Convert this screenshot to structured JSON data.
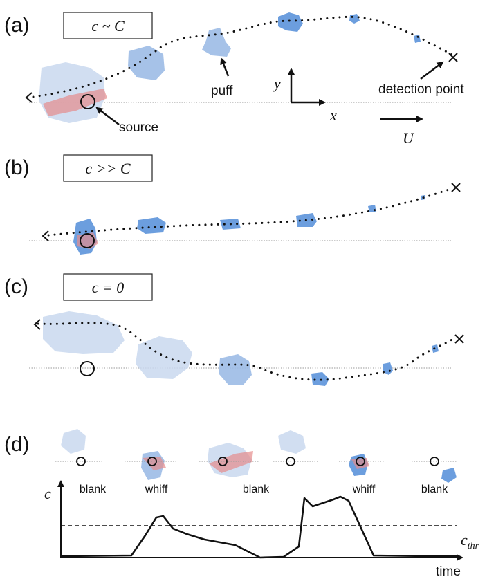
{
  "panels": {
    "a": {
      "label": "(a)",
      "box": "c ~ C"
    },
    "b": {
      "label": "(b)",
      "box": "c >> C"
    },
    "c": {
      "label": "(c)",
      "box": "c = 0"
    },
    "d": {
      "label": "(d)"
    }
  },
  "annotations": {
    "puff": "puff",
    "source": "source",
    "detection_point": "detection point",
    "y_axis": "y",
    "x_axis": "x",
    "velocity": "U"
  },
  "panel_d": {
    "events": [
      "blank",
      "whiff",
      "blank",
      "whiff",
      "blank"
    ],
    "y_axis_label": "c",
    "threshold_label": "c",
    "threshold_subscript": "thr",
    "x_axis_label": "time"
  }
}
